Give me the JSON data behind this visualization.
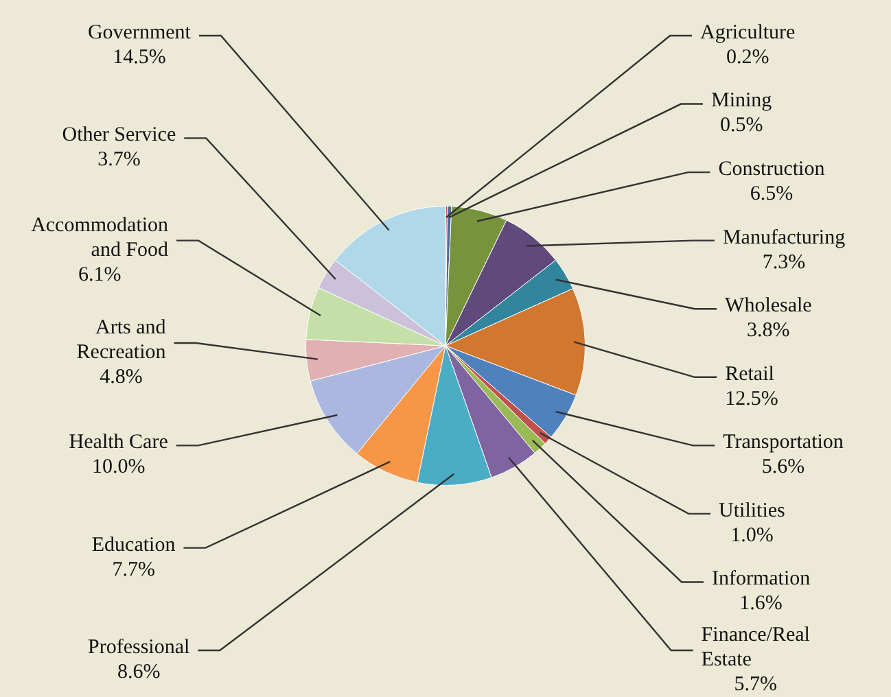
{
  "chart_data": {
    "type": "pie",
    "categories": [
      "Agriculture",
      "Mining",
      "Construction",
      "Manufacturing",
      "Wholesale",
      "Retail",
      "Transportation",
      "Utilities",
      "Information",
      "Finance/Real Estate",
      "Professional",
      "Education",
      "Health Care",
      "Arts and Recreation",
      "Accommodation and Food",
      "Other Service",
      "Government"
    ],
    "values": [
      0.2,
      0.5,
      6.5,
      7.3,
      3.8,
      12.5,
      5.6,
      1.0,
      1.6,
      5.7,
      8.6,
      7.7,
      10.0,
      4.8,
      6.1,
      3.7,
      14.5
    ],
    "value_labels": [
      "0.2%",
      "0.5%",
      "6.5%",
      "7.3%",
      "3.8%",
      "12.5%",
      "5.6%",
      "1.0%",
      "1.6%",
      "5.7%",
      "8.6%",
      "7.7%",
      "10.0%",
      "4.8%",
      "6.1%",
      "3.7%",
      "14.5%"
    ],
    "colors": [
      "#c0504d",
      "#4f6d9a",
      "#77933c",
      "#604a7b",
      "#31859c",
      "#d2772f",
      "#4f81bd",
      "#c0504d",
      "#9bbb59",
      "#8064a2",
      "#4bacc6",
      "#f79646",
      "#aab8e0",
      "#e0b0b2",
      "#c4e0a8",
      "#ccc1da",
      "#b0d8e8"
    ],
    "legend": false
  }
}
